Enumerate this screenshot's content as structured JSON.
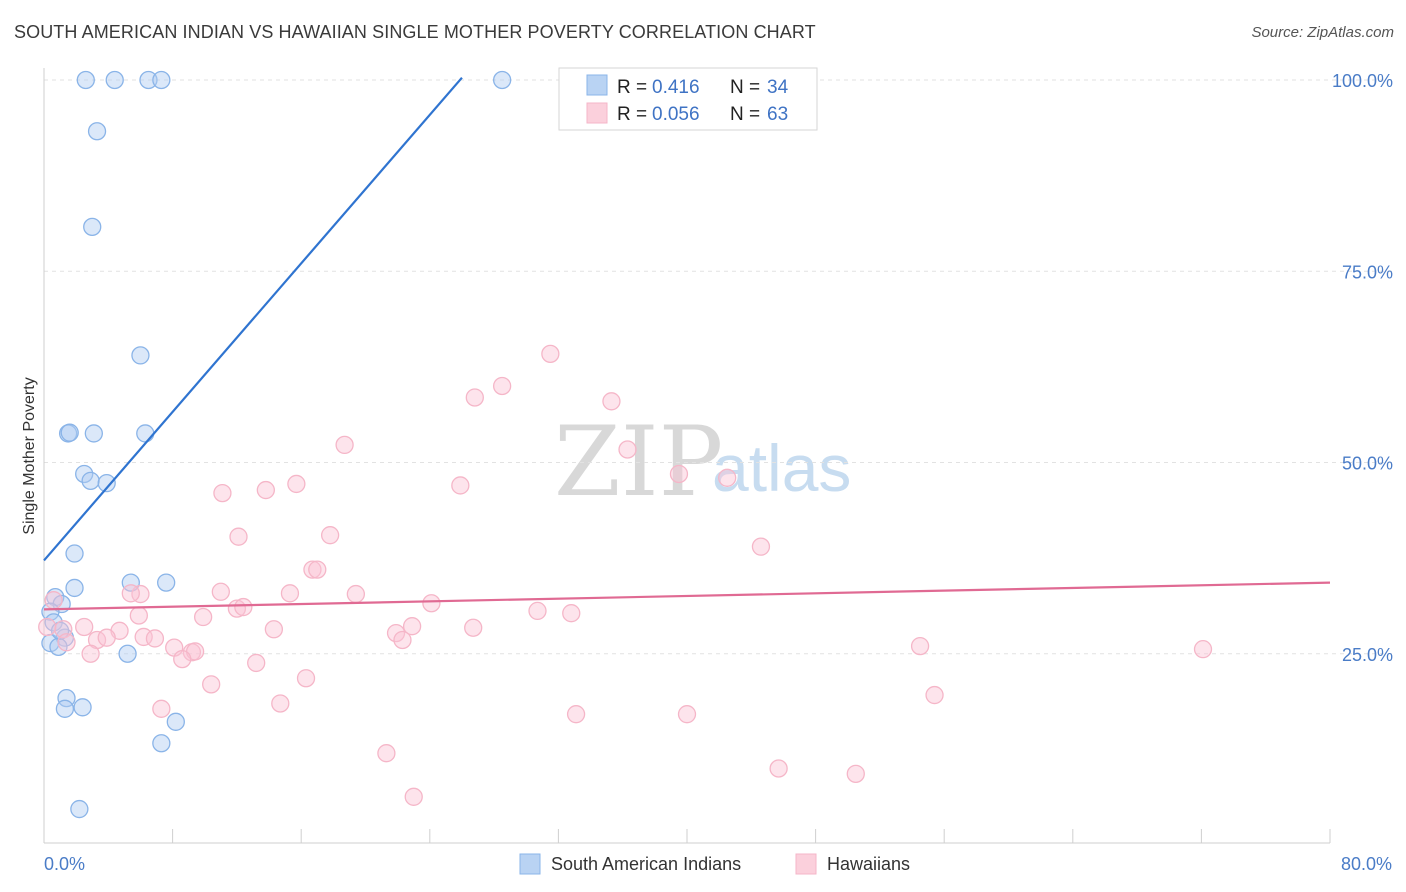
{
  "chart_data": {
    "type": "scatter",
    "title": "SOUTH AMERICAN INDIAN VS HAWAIIAN SINGLE MOTHER POVERTY CORRELATION CHART",
    "source": "Source: ZipAtlas.com",
    "xlabel": "",
    "ylabel": "Single Mother Poverty",
    "xlim": [
      0,
      80
    ],
    "ylim": [
      0,
      100
    ],
    "x_tick_labels": {
      "min": "0.0%",
      "max": "80.0%"
    },
    "y_ticks": [
      {
        "value": 100,
        "label": "100.0%"
      },
      {
        "value": 75,
        "label": "75.0%"
      },
      {
        "value": 50,
        "label": "50.0%"
      },
      {
        "value": 25,
        "label": "25.0%"
      }
    ],
    "grid": true,
    "watermark": {
      "zip": "ZIP",
      "atlas": "atlas"
    },
    "legend": {
      "placement": "top-center",
      "entries": [
        {
          "r_label": "R =",
          "r_value": "0.416",
          "n_label": "N =",
          "n_value": "34"
        },
        {
          "r_label": "R =",
          "r_value": "0.056",
          "n_label": "N =",
          "n_value": "63"
        }
      ]
    },
    "series": [
      {
        "name": "South American Indians",
        "color": "#8ab4e8",
        "line_color": "#2f74d0",
        "trend": {
          "x": [
            0,
            26
          ],
          "y": [
            37.2,
            100.3
          ]
        },
        "points": [
          [
            2.6,
            100
          ],
          [
            4.4,
            100
          ],
          [
            6.5,
            100
          ],
          [
            7.3,
            100
          ],
          [
            28.5,
            100
          ],
          [
            3.3,
            93.3
          ],
          [
            3.0,
            80.8
          ],
          [
            6.0,
            64.0
          ],
          [
            1.5,
            53.8
          ],
          [
            1.6,
            53.9
          ],
          [
            3.1,
            53.8
          ],
          [
            6.3,
            53.8
          ],
          [
            2.5,
            48.5
          ],
          [
            2.9,
            47.6
          ],
          [
            3.9,
            47.3
          ],
          [
            1.9,
            38.1
          ],
          [
            5.4,
            34.3
          ],
          [
            7.6,
            34.3
          ],
          [
            1.9,
            33.6
          ],
          [
            0.7,
            32.4
          ],
          [
            1.1,
            31.5
          ],
          [
            0.4,
            30.5
          ],
          [
            0.6,
            29.1
          ],
          [
            1.3,
            27.1
          ],
          [
            0.4,
            26.4
          ],
          [
            0.9,
            25.9
          ],
          [
            5.2,
            25.0
          ],
          [
            1.4,
            19.2
          ],
          [
            1.3,
            17.8
          ],
          [
            2.4,
            18.0
          ],
          [
            8.2,
            16.1
          ],
          [
            7.3,
            13.3
          ],
          [
            2.2,
            4.7
          ],
          [
            1.0,
            28.0
          ]
        ]
      },
      {
        "name": "Hawaiians",
        "color": "#f5b6c8",
        "line_color": "#e06a93",
        "trend": {
          "x": [
            0,
            80
          ],
          "y": [
            30.8,
            34.3
          ]
        },
        "points": [
          [
            31.5,
            64.2
          ],
          [
            28.5,
            60.0
          ],
          [
            26.8,
            58.5
          ],
          [
            35.3,
            58.0
          ],
          [
            18.7,
            52.3
          ],
          [
            36.3,
            51.7
          ],
          [
            39.5,
            48.5
          ],
          [
            42.5,
            48.0
          ],
          [
            25.9,
            47.0
          ],
          [
            15.7,
            47.2
          ],
          [
            13.8,
            46.4
          ],
          [
            11.1,
            46.0
          ],
          [
            12.1,
            40.3
          ],
          [
            17.8,
            40.5
          ],
          [
            44.6,
            39.0
          ],
          [
            16.7,
            36.0
          ],
          [
            17.0,
            36.0
          ],
          [
            11.0,
            33.1
          ],
          [
            19.4,
            32.8
          ],
          [
            15.3,
            32.9
          ],
          [
            6.0,
            32.8
          ],
          [
            5.4,
            32.9
          ],
          [
            24.1,
            31.6
          ],
          [
            12.0,
            30.9
          ],
          [
            12.4,
            31.1
          ],
          [
            30.7,
            30.6
          ],
          [
            32.8,
            30.3
          ],
          [
            5.9,
            30.0
          ],
          [
            9.9,
            29.8
          ],
          [
            14.3,
            28.2
          ],
          [
            22.9,
            28.6
          ],
          [
            26.7,
            28.4
          ],
          [
            2.5,
            28.5
          ],
          [
            1.2,
            28.2
          ],
          [
            0.2,
            28.5
          ],
          [
            4.7,
            28.0
          ],
          [
            21.9,
            27.7
          ],
          [
            22.3,
            26.8
          ],
          [
            6.2,
            27.2
          ],
          [
            6.9,
            27.0
          ],
          [
            3.3,
            26.8
          ],
          [
            3.9,
            27.1
          ],
          [
            1.4,
            26.5
          ],
          [
            54.5,
            26.0
          ],
          [
            72.1,
            25.6
          ],
          [
            8.1,
            25.8
          ],
          [
            9.2,
            25.2
          ],
          [
            9.4,
            25.3
          ],
          [
            2.9,
            25.0
          ],
          [
            8.6,
            24.3
          ],
          [
            13.2,
            23.8
          ],
          [
            16.3,
            21.8
          ],
          [
            10.4,
            21.0
          ],
          [
            14.7,
            18.5
          ],
          [
            55.4,
            19.6
          ],
          [
            7.3,
            17.8
          ],
          [
            33.1,
            17.1
          ],
          [
            40.0,
            17.1
          ],
          [
            21.3,
            12.0
          ],
          [
            45.7,
            10.0
          ],
          [
            50.5,
            9.3
          ],
          [
            23.0,
            6.3
          ],
          [
            0.6,
            32.0
          ]
        ]
      }
    ]
  }
}
